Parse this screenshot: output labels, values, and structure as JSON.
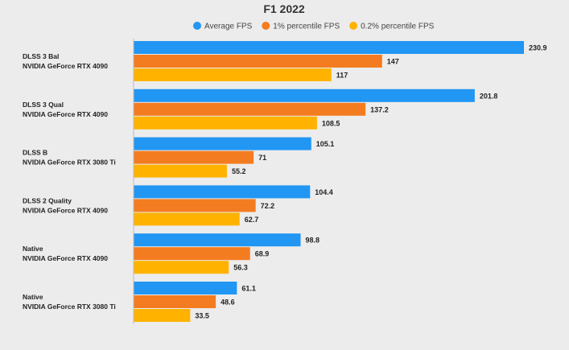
{
  "chart_data": {
    "type": "bar",
    "orientation": "horizontal",
    "title": "F1 2022",
    "xlabel": "",
    "ylabel": "",
    "xlim": [
      0,
      250
    ],
    "grid": false,
    "legend_position": "top",
    "categories": [
      [
        "DLSS 3 Bal",
        "NVIDIA GeForce RTX 4090"
      ],
      [
        "DLSS 3 Qual",
        "NVIDIA GeForce RTX 4090"
      ],
      [
        "DLSS B",
        "NVIDIA GeForce RTX 3080 Ti"
      ],
      [
        "DLSS 2 Quality",
        "NVIDIA GeForce RTX 4090"
      ],
      [
        "Native",
        "NVIDIA GeForce RTX 4090"
      ],
      [
        "Native",
        "NVIDIA GeForce RTX 3080 Ti"
      ]
    ],
    "series": [
      {
        "name": "Average FPS",
        "color": "#2196f3",
        "values": [
          230.9,
          201.8,
          105.1,
          104.4,
          98.8,
          61.1
        ]
      },
      {
        "name": "1% percentile FPS",
        "color": "#f47c20",
        "values": [
          147,
          137.2,
          71,
          72.2,
          68.9,
          48.6
        ]
      },
      {
        "name": "0.2% percentile FPS",
        "color": "#ffb300",
        "values": [
          117,
          108.5,
          55.2,
          62.7,
          56.3,
          33.5
        ]
      }
    ]
  }
}
